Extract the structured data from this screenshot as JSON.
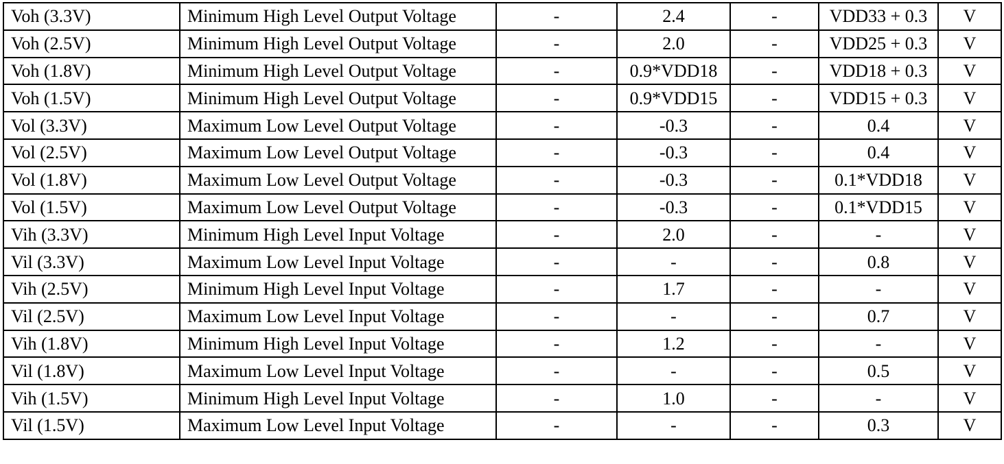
{
  "table": {
    "rows": [
      [
        "Voh (3.3V)",
        "Minimum High Level Output Voltage",
        "-",
        "2.4",
        "-",
        "VDD33 + 0.3",
        "V"
      ],
      [
        "Voh (2.5V)",
        "Minimum High Level Output Voltage",
        "-",
        "2.0",
        "-",
        "VDD25 + 0.3",
        "V"
      ],
      [
        "Voh (1.8V)",
        "Minimum High Level Output Voltage",
        "-",
        "0.9*VDD18",
        "-",
        "VDD18 + 0.3",
        "V"
      ],
      [
        "Voh (1.5V)",
        "Minimum High Level Output Voltage",
        "-",
        "0.9*VDD15",
        "-",
        "VDD15 + 0.3",
        "V"
      ],
      [
        "Vol (3.3V)",
        "Maximum Low Level Output Voltage",
        "-",
        "-0.3",
        "-",
        "0.4",
        "V"
      ],
      [
        "Vol (2.5V)",
        "Maximum Low Level Output Voltage",
        "-",
        "-0.3",
        "-",
        "0.4",
        "V"
      ],
      [
        "Vol (1.8V)",
        "Maximum Low Level Output Voltage",
        "-",
        "-0.3",
        "-",
        "0.1*VDD18",
        "V"
      ],
      [
        "Vol (1.5V)",
        "Maximum Low Level Output Voltage",
        "-",
        "-0.3",
        "-",
        "0.1*VDD15",
        "V"
      ],
      [
        "Vih (3.3V)",
        "Minimum High Level Input Voltage",
        "-",
        "2.0",
        "-",
        "-",
        "V"
      ],
      [
        "Vil (3.3V)",
        "Maximum Low Level Input Voltage",
        "-",
        "-",
        "-",
        "0.8",
        "V"
      ],
      [
        "Vih (2.5V)",
        "Minimum High Level Input Voltage",
        "-",
        "1.7",
        "-",
        "-",
        "V"
      ],
      [
        "Vil (2.5V)",
        "Maximum Low Level Input Voltage",
        "-",
        "-",
        "-",
        "0.7",
        "V"
      ],
      [
        "Vih (1.8V)",
        "Minimum High Level Input Voltage",
        "-",
        "1.2",
        "-",
        "-",
        "V"
      ],
      [
        "Vil (1.8V)",
        "Maximum Low Level Input Voltage",
        "-",
        "-",
        "-",
        "0.5",
        "V"
      ],
      [
        "Vih (1.5V)",
        "Minimum High Level Input Voltage",
        "-",
        "1.0",
        "-",
        "-",
        "V"
      ],
      [
        "Vil (1.5V)",
        "Maximum Low Level Input Voltage",
        "-",
        "-",
        "-",
        "0.3",
        "V"
      ]
    ]
  }
}
